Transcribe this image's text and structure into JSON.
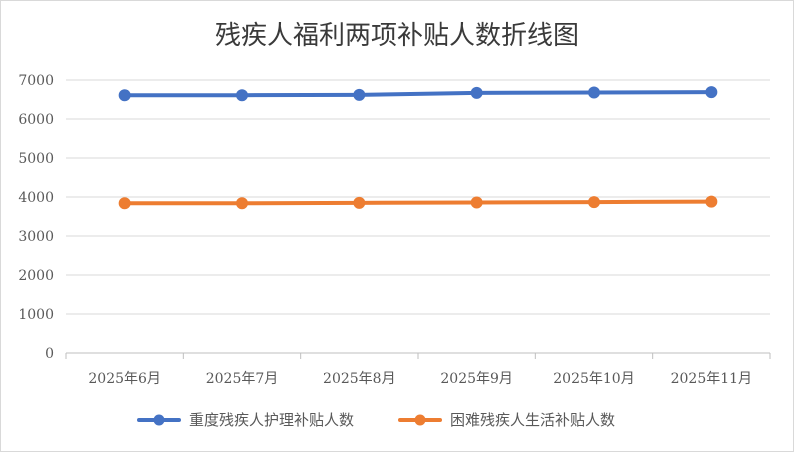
{
  "chart_data": {
    "type": "line",
    "title": "残疾人福利两项补贴人数折线图",
    "categories": [
      "2025年6月",
      "2025年7月",
      "2025年8月",
      "2025年9月",
      "2025年10月",
      "2025年11月"
    ],
    "series": [
      {
        "name": "重度残疾人护理补贴人数",
        "color": "#4472c4",
        "values": [
          6610,
          6610,
          6620,
          6670,
          6680,
          6690
        ]
      },
      {
        "name": "困难残疾人生活补贴人数",
        "color": "#ed7d31",
        "values": [
          3840,
          3840,
          3850,
          3860,
          3870,
          3880
        ]
      }
    ],
    "ylim": [
      0,
      7000
    ],
    "yticks": [
      "0",
      "1000",
      "2000",
      "3000",
      "4000",
      "5000",
      "6000",
      "7000"
    ],
    "grid": true,
    "legend": "bottom"
  }
}
